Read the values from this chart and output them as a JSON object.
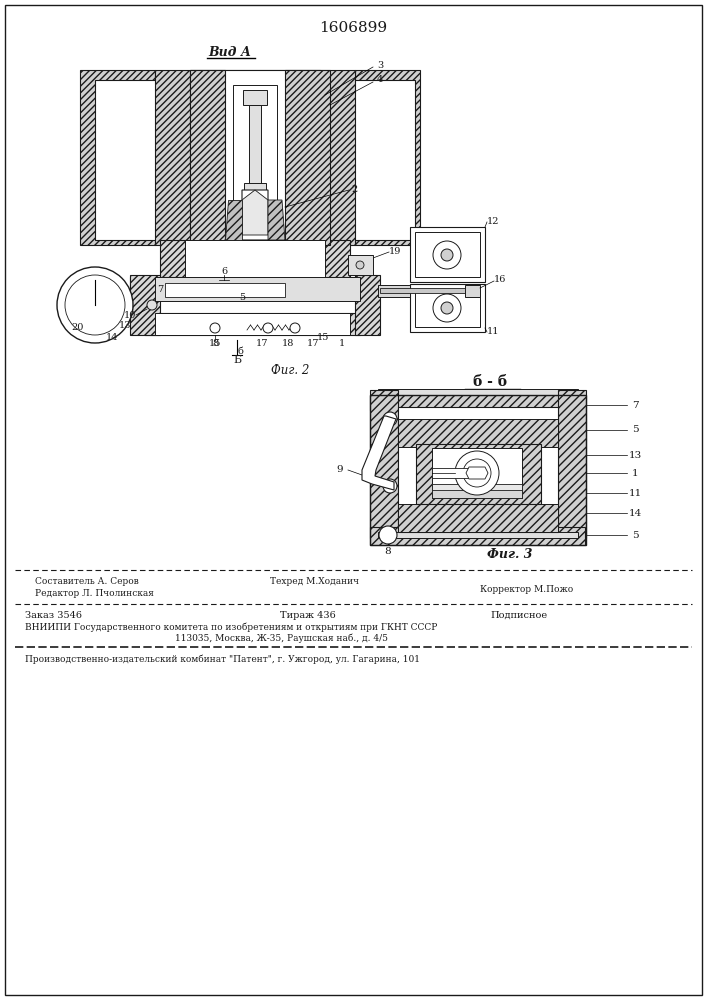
{
  "title": "1606899",
  "view_label": "Вид А",
  "fig2_label": "Фиг. 2",
  "fig3_label": "Фиг. 3",
  "section_label": "Б - б",
  "footer_editor": "Редактор Л. Пчолинская",
  "footer_composer": "Составитель А. Серов",
  "footer_techred": "Техред М.Ходанич",
  "footer_corrector": "Корректор М.Пожо",
  "footer_order": "Заказ 3546",
  "footer_tirazh": "Тираж 436",
  "footer_podpisnoe": "Подписное",
  "footer_vniipи": "ВНИИПИ Государственного комитета по изобретениям и открытиям при ГКНТ СССР",
  "footer_address": "113035, Москва, Ж-35, Раушская наб., д. 4/5",
  "footer_production": "Производственно-издательский комбинат \"Патент\", г. Ужгород, ул. Гагарина, 101",
  "line_color": "#1a1a1a",
  "drawing_bg": "#ffffff",
  "hatch_gray": "#bbbbbb",
  "solid_gray": "#cccccc"
}
